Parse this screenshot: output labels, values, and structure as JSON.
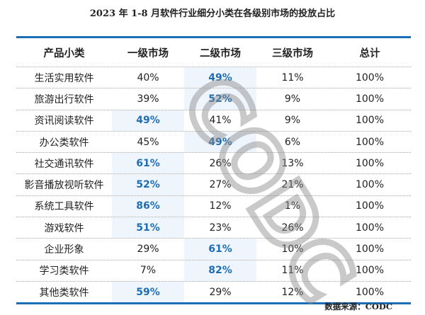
{
  "title": "2023 年 1-8 月软件行业细分小类在各级别市场的投放占比",
  "source": "数据来源：CODC",
  "watermark": "CODC",
  "colors": {
    "accent": "#1a6fb8",
    "highlight_text": "#1f6db3",
    "highlight_bg": "#eef5fc"
  },
  "chart_data": {
    "type": "table",
    "title": "2023 年 1-8 月软件行业细分小类在各级别市场的投放占比",
    "columns": [
      "产品小类",
      "一级市场",
      "二级市场",
      "三级市场",
      "总计"
    ],
    "rows": [
      {
        "cells": [
          "生活实用软件",
          "40%",
          "49%",
          "11%",
          "100%"
        ],
        "highlight": 2
      },
      {
        "cells": [
          "旅游出行软件",
          "39%",
          "52%",
          "9%",
          "100%"
        ],
        "highlight": 2
      },
      {
        "cells": [
          "资讯阅读软件",
          "49%",
          "41%",
          "9%",
          "100%"
        ],
        "highlight": 1
      },
      {
        "cells": [
          "办公类软件",
          "45%",
          "49%",
          "6%",
          "100%"
        ],
        "highlight": 2
      },
      {
        "cells": [
          "社交通讯软件",
          "61%",
          "26%",
          "13%",
          "100%"
        ],
        "highlight": 1
      },
      {
        "cells": [
          "影音播放视听软件",
          "52%",
          "27%",
          "21%",
          "100%"
        ],
        "highlight": 1
      },
      {
        "cells": [
          "系统工具软件",
          "86%",
          "12%",
          "1%",
          "100%"
        ],
        "highlight": 1
      },
      {
        "cells": [
          "游戏软件",
          "51%",
          "23%",
          "26%",
          "100%"
        ],
        "highlight": 1
      },
      {
        "cells": [
          "企业形象",
          "29%",
          "61%",
          "10%",
          "100%"
        ],
        "highlight": 2
      },
      {
        "cells": [
          "学习类软件",
          "7%",
          "82%",
          "11%",
          "100%"
        ],
        "highlight": 2
      },
      {
        "cells": [
          "其他类软件",
          "59%",
          "29%",
          "12%",
          "100%"
        ],
        "highlight": 1
      }
    ]
  }
}
